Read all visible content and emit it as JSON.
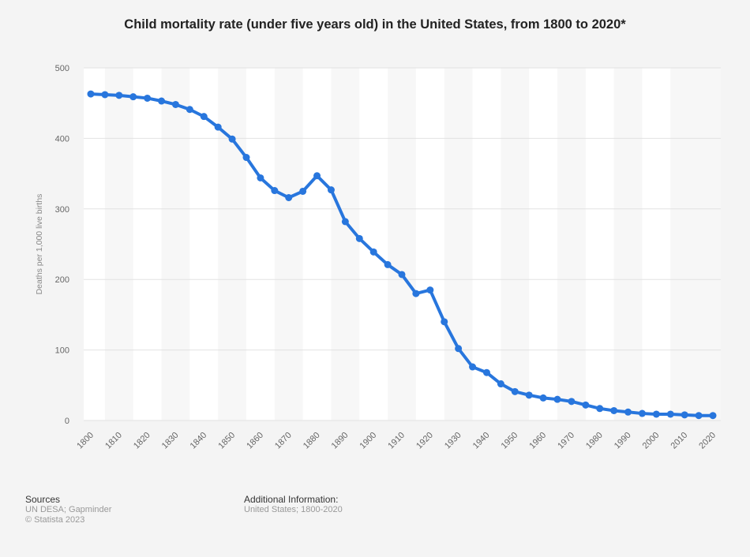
{
  "chart_data": {
    "type": "line",
    "title": "Child mortality rate (under five years old) in the United States, from 1800 to 2020*",
    "xlabel": "",
    "ylabel": "Deaths per 1,000 live births",
    "ylim": [
      0,
      500
    ],
    "yticks": [
      "0",
      "100",
      "200",
      "300",
      "400",
      "500"
    ],
    "xticks": [
      "1800",
      "1810",
      "1820",
      "1830",
      "1840",
      "1850",
      "1860",
      "1870",
      "1880",
      "1890",
      "1900",
      "1910",
      "1920",
      "1930",
      "1940",
      "1950",
      "1960",
      "1970",
      "1980",
      "1990",
      "2000",
      "2010",
      "2020"
    ],
    "grid": true,
    "color": "#2876dd",
    "x": [
      1800,
      1805,
      1810,
      1815,
      1820,
      1825,
      1830,
      1835,
      1840,
      1845,
      1850,
      1855,
      1860,
      1865,
      1870,
      1875,
      1880,
      1885,
      1890,
      1895,
      1900,
      1905,
      1910,
      1915,
      1920,
      1925,
      1930,
      1935,
      1940,
      1945,
      1950,
      1955,
      1960,
      1965,
      1970,
      1975,
      1980,
      1985,
      1990,
      1995,
      2000,
      2005,
      2010,
      2015,
      2020
    ],
    "values": [
      463,
      462,
      461,
      459,
      457,
      453,
      448,
      441,
      431,
      416,
      399,
      373,
      344,
      326,
      316,
      325,
      347,
      327,
      282,
      258,
      239,
      221,
      207,
      180,
      185,
      140,
      102,
      76,
      68,
      52,
      41,
      36,
      32,
      30,
      27,
      22,
      17,
      14,
      12,
      10,
      9,
      9,
      8,
      7,
      7
    ]
  },
  "footer": {
    "sources_heading": "Sources",
    "sources_line1": "UN DESA; Gapminder",
    "sources_line2": "© Statista 2023",
    "info_heading": "Additional Information:",
    "info_line1": "United States; 1800-2020"
  }
}
